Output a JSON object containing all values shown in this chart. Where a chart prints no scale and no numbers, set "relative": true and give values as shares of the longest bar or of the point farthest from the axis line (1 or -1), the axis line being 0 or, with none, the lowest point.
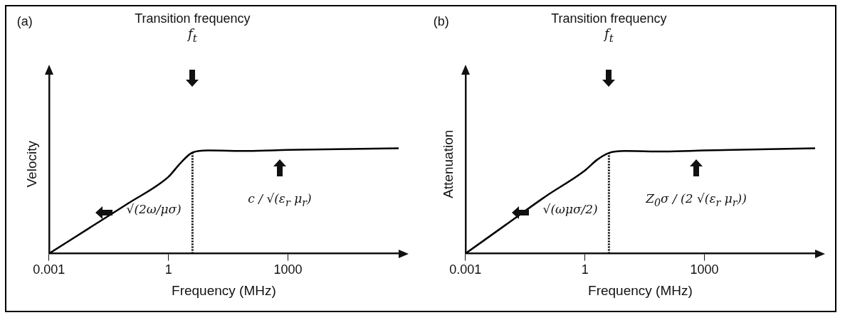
{
  "chart_data": [
    {
      "type": "line",
      "title": "(a)",
      "xlabel": "Frequency (MHz)",
      "ylabel": "Velocity",
      "relative": true,
      "log": "x",
      "grid": false,
      "marker": "none",
      "tick_labels": "x",
      "xlim": [
        0.001,
        600000
      ],
      "xticks": [
        0.001,
        1,
        1000
      ],
      "x": [
        0.001,
        0.01,
        0.1,
        1,
        2,
        4,
        10,
        100,
        1000,
        600000
      ],
      "series": [
        {
          "color": "#000000",
          "values": [
            0,
            0.24,
            0.48,
            0.73,
            0.86,
            0.96,
            0.98,
            0.975,
            0.985,
            1
          ]
        }
      ],
      "ref_lines": [
        {
          "axis": "x",
          "value": 4,
          "label": "Transition frequency\nf$_{t}$",
          "line_style": "dotted",
          "color": "#000000"
        }
      ],
      "annotations": [
        "√(2ω/μσ)",
        "c / √(ε$_{r}$ μ$_{r}$)"
      ]
    },
    {
      "type": "line",
      "title": "(b)",
      "xlabel": "Frequency (MHz)",
      "ylabel": "Attenuation",
      "relative": true,
      "log": "x",
      "grid": false,
      "marker": "none",
      "tick_labels": "x",
      "xlim": [
        0.001,
        600000
      ],
      "xticks": [
        0.001,
        1,
        1000
      ],
      "x": [
        0.001,
        0.01,
        0.1,
        1,
        2,
        4,
        10,
        100,
        1000,
        600000
      ],
      "series": [
        {
          "color": "#000000",
          "values": [
            0,
            0.27,
            0.54,
            0.79,
            0.89,
            0.956,
            0.975,
            0.97,
            0.98,
            1
          ]
        }
      ],
      "ref_lines": [
        {
          "axis": "x",
          "value": 4,
          "label": "Transition frequency\nf$_{t}$",
          "line_style": "dotted",
          "color": "#000000"
        }
      ],
      "annotations": [
        "√(ωμσ/2)",
        "Z$_{0}$σ / (2 √(ε$_{r}$ μ$_{r}$))"
      ]
    }
  ]
}
